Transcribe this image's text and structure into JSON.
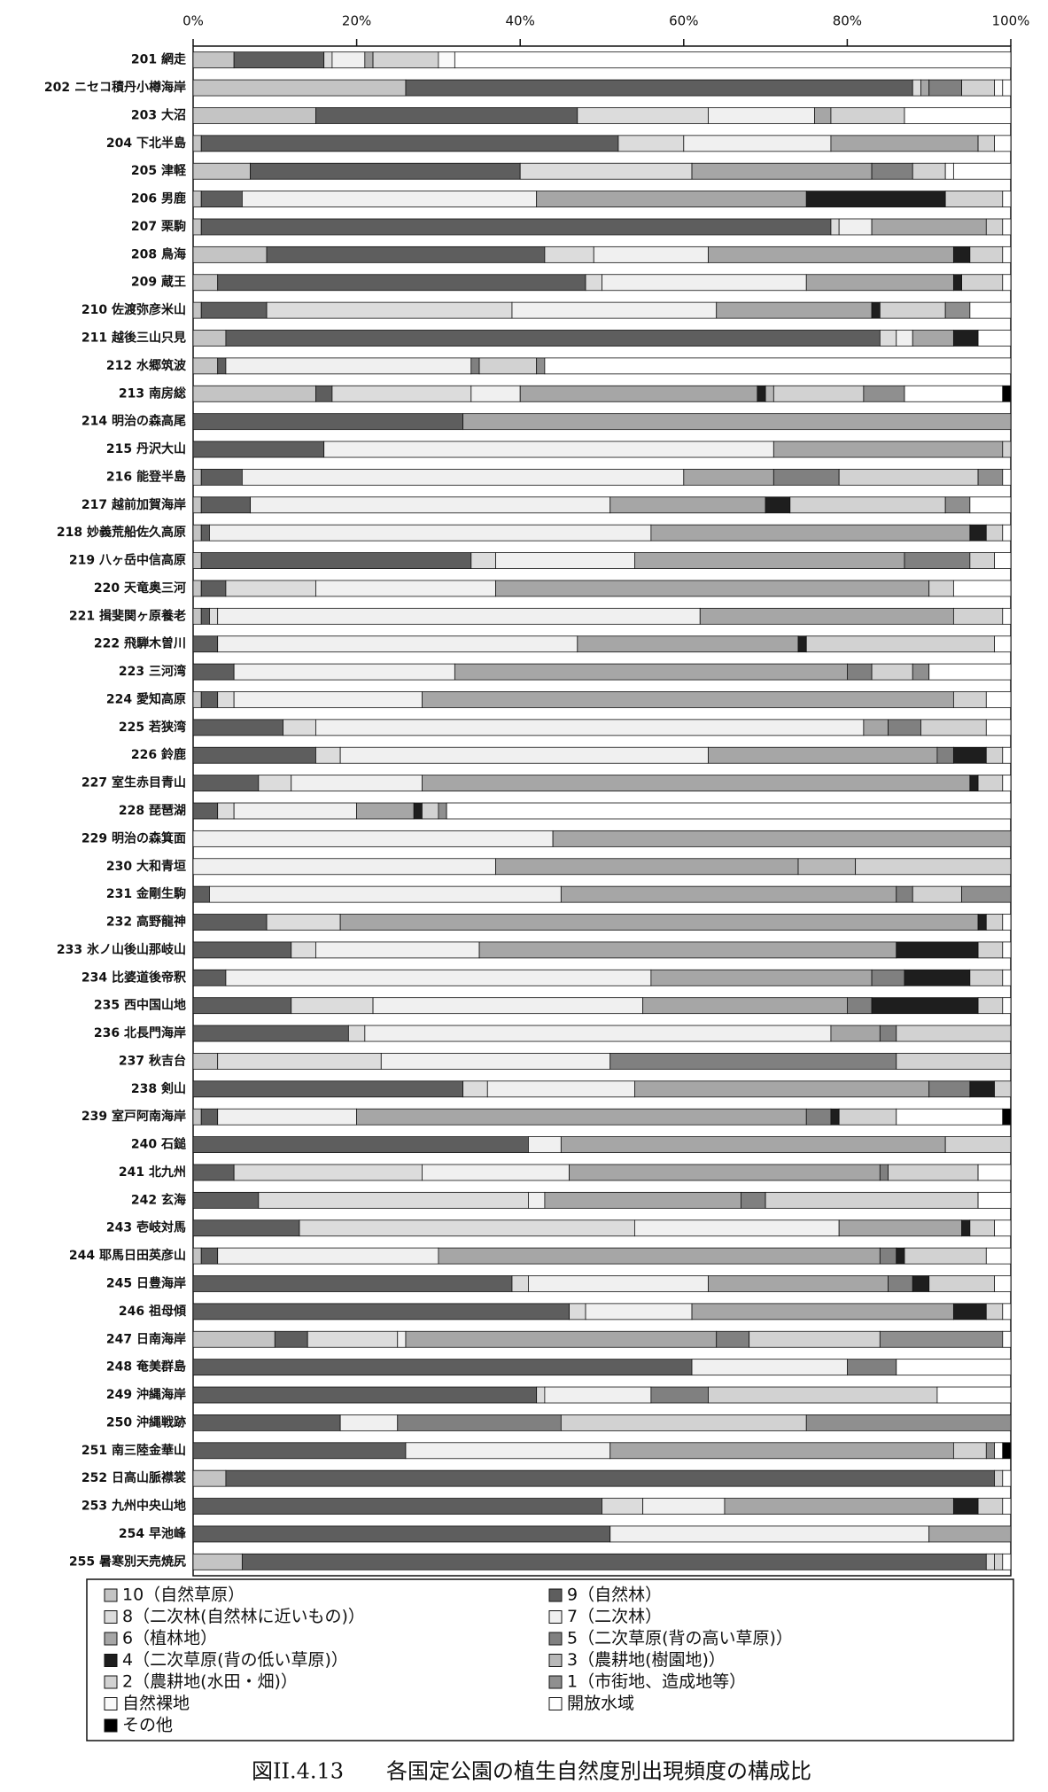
{
  "chart_data": {
    "type": "bar",
    "orientation": "horizontal",
    "stacked": true,
    "title": "図II.4.13　　各国定公園の植生自然度別出現頻度の構成比",
    "categories": [
      "201 網走",
      "202 ニセコ積丹小樽海岸",
      "203 大沼",
      "204 下北半島",
      "205 津軽",
      "206 男鹿",
      "207 栗駒",
      "208 鳥海",
      "209 蔵王",
      "210 佐渡弥彦米山",
      "211 越後三山只見",
      "212 水郷筑波",
      "213 南房総",
      "214 明治の森高尾",
      "215 丹沢大山",
      "216 能登半島",
      "217 越前加賀海岸",
      "218 妙義荒船佐久高原",
      "219 八ヶ岳中信高原",
      "220 天竜奥三河",
      "221 揖斐関ヶ原養老",
      "222 飛騨木曽川",
      "223 三河湾",
      "224 愛知高原",
      "225 若狭湾",
      "226 鈴鹿",
      "227 室生赤目青山",
      "228 琵琶湖",
      "229 明治の森箕面",
      "230 大和青垣",
      "231 金剛生駒",
      "232 高野龍神",
      "233 氷ノ山後山那岐山",
      "234 比婆道後帝釈",
      "235 西中国山地",
      "236 北長門海岸",
      "237 秋吉台",
      "238 剣山",
      "239 室戸阿南海岸",
      "240 石鎚",
      "241 北九州",
      "242 玄海",
      "243 壱岐対馬",
      "244 耶馬日田英彦山",
      "245 日豊海岸",
      "246 祖母傾",
      "247 日南海岸",
      "248 奄美群島",
      "249 沖縄海岸",
      "250 沖縄戦跡",
      "251 南三陸金華山",
      "252 日高山脈襟裳",
      "253 九州中央山地",
      "254 早池峰",
      "255 暑寒別天売焼尻"
    ],
    "xlim": [
      0,
      100
    ],
    "xticks": [
      {
        "value": 0,
        "label": "0%"
      },
      {
        "value": 20,
        "label": "20%"
      },
      {
        "value": 40,
        "label": "40%"
      },
      {
        "value": 60,
        "label": "60%"
      },
      {
        "value": 80,
        "label": "80%"
      },
      {
        "value": 100,
        "label": "100%"
      }
    ],
    "grid": false,
    "series": [
      {
        "name": "10（自然草原）",
        "color": "#c4c4c4",
        "values": [
          5,
          26,
          15,
          1,
          7,
          1,
          1,
          9,
          3,
          1,
          4,
          3,
          15,
          0,
          0,
          1,
          1,
          1,
          1,
          1,
          1,
          0,
          0,
          1,
          0,
          0,
          0,
          0,
          0,
          0,
          0,
          0,
          0,
          0,
          0,
          0,
          3,
          0,
          1,
          0,
          0,
          0,
          0,
          1,
          0,
          0,
          10,
          0,
          0,
          0,
          0,
          4,
          0,
          0,
          6
        ]
      },
      {
        "name": "9（自然林）",
        "color": "#5e5e5e",
        "values": [
          11,
          62,
          32,
          51,
          33,
          5,
          77,
          34,
          45,
          8,
          80,
          1,
          2,
          33,
          16,
          5,
          6,
          1,
          33,
          3,
          1,
          3,
          5,
          2,
          11,
          15,
          8,
          3,
          0,
          0,
          2,
          9,
          12,
          4,
          12,
          19,
          0,
          33,
          2,
          41,
          5,
          8,
          13,
          2,
          39,
          46,
          4,
          61,
          42,
          18,
          26,
          94,
          50,
          51,
          91
        ]
      },
      {
        "name": "8（二次林(自然林に近いもの)）",
        "color": "#dcdcdc",
        "values": [
          1,
          1,
          16,
          8,
          21,
          0,
          1,
          6,
          2,
          30,
          2,
          0,
          17,
          0,
          0,
          0,
          0,
          0,
          3,
          11,
          1,
          0,
          0,
          2,
          4,
          3,
          4,
          2,
          0,
          0,
          0,
          9,
          3,
          0,
          10,
          2,
          20,
          3,
          0,
          0,
          23,
          33,
          41,
          0,
          2,
          2,
          11,
          0,
          1,
          0,
          0,
          0,
          5,
          0,
          1
        ]
      },
      {
        "name": "7（二次林）",
        "color": "#f0f0f0",
        "values": [
          4,
          0,
          13,
          18,
          0,
          36,
          4,
          14,
          25,
          25,
          2,
          30,
          6,
          0,
          55,
          54,
          44,
          54,
          17,
          22,
          59,
          44,
          27,
          23,
          67,
          45,
          16,
          15,
          44,
          37,
          43,
          0,
          20,
          52,
          33,
          57,
          28,
          18,
          17,
          4,
          18,
          2,
          25,
          27,
          22,
          13,
          1,
          19,
          13,
          7,
          25,
          0,
          10,
          39,
          0
        ]
      },
      {
        "name": "6（植林地）",
        "color": "#a6a6a6",
        "values": [
          1,
          1,
          2,
          18,
          22,
          33,
          14,
          30,
          18,
          19,
          5,
          0,
          29,
          67,
          28,
          11,
          19,
          39,
          33,
          53,
          31,
          27,
          48,
          65,
          3,
          28,
          67,
          7,
          56,
          37,
          41,
          78,
          51,
          27,
          25,
          6,
          0,
          36,
          55,
          47,
          38,
          24,
          15,
          54,
          22,
          32,
          38,
          0,
          0,
          0,
          42,
          0,
          28,
          10,
          0
        ]
      },
      {
        "name": "5（二次草原(背の高い草原)）",
        "color": "#808080",
        "values": [
          0,
          4,
          0,
          0,
          5,
          0,
          0,
          0,
          0,
          0,
          0,
          1,
          0,
          0,
          0,
          8,
          0,
          0,
          8,
          0,
          0,
          0,
          3,
          0,
          4,
          2,
          0,
          0,
          0,
          0,
          2,
          0,
          0,
          4,
          3,
          2,
          35,
          5,
          3,
          0,
          1,
          3,
          0,
          2,
          3,
          0,
          4,
          6,
          7,
          20,
          0,
          0,
          0,
          0,
          0
        ]
      },
      {
        "name": "4（二次草原(背の低い草原)）",
        "color": "#1e1e1e",
        "values": [
          0,
          0,
          0,
          0,
          0,
          17,
          0,
          2,
          1,
          1,
          3,
          0,
          1,
          0,
          0,
          0,
          3,
          2,
          0,
          0,
          0,
          1,
          0,
          0,
          0,
          4,
          1,
          1,
          0,
          0,
          0,
          1,
          10,
          8,
          13,
          0,
          0,
          3,
          1,
          0,
          0,
          0,
          1,
          1,
          2,
          4,
          0,
          0,
          0,
          0,
          0,
          0,
          3,
          0,
          0
        ]
      },
      {
        "name": "3（農耕地(樹園地)）",
        "color": "#b8b8b8",
        "values": [
          0,
          0,
          0,
          0,
          0,
          0,
          0,
          0,
          0,
          0,
          0,
          0,
          1,
          0,
          0,
          0,
          0,
          0,
          0,
          0,
          0,
          0,
          0,
          0,
          0,
          0,
          0,
          0,
          0,
          7,
          0,
          0,
          0,
          0,
          0,
          0,
          0,
          0,
          0,
          0,
          0,
          0,
          0,
          0,
          0,
          0,
          0,
          0,
          0,
          0,
          0,
          0,
          0,
          0,
          0
        ]
      },
      {
        "name": "2（農耕地(水田・畑)）",
        "color": "#d2d2d2",
        "values": [
          8,
          4,
          9,
          2,
          4,
          7,
          2,
          4,
          5,
          8,
          0,
          7,
          11,
          0,
          1,
          17,
          19,
          2,
          3,
          3,
          6,
          23,
          5,
          4,
          8,
          2,
          3,
          2,
          0,
          19,
          6,
          2,
          3,
          4,
          3,
          14,
          14,
          2,
          7,
          8,
          11,
          26,
          3,
          10,
          8,
          2,
          16,
          0,
          28,
          30,
          4,
          1,
          3,
          0,
          1
        ]
      },
      {
        "name": "1（市街地、造成地等）",
        "color": "#8f8f8f",
        "values": [
          0,
          0,
          0,
          0,
          0,
          0,
          0,
          0,
          0,
          3,
          0,
          1,
          5,
          0,
          0,
          3,
          3,
          0,
          0,
          0,
          0,
          0,
          2,
          0,
          0,
          0,
          0,
          1,
          0,
          0,
          6,
          0,
          0,
          0,
          0,
          0,
          0,
          0,
          0,
          0,
          0,
          0,
          0,
          0,
          0,
          0,
          15,
          0,
          0,
          25,
          1,
          0,
          0,
          0,
          0
        ]
      },
      {
        "name": "自然裸地",
        "color": "#fafafa",
        "values": [
          2,
          1,
          0,
          0,
          1,
          0,
          0,
          0,
          0,
          0,
          0,
          0,
          0,
          0,
          0,
          0,
          0,
          0,
          0,
          0,
          0,
          0,
          0,
          0,
          0,
          0,
          0,
          0,
          0,
          0,
          0,
          0,
          0,
          0,
          0,
          0,
          0,
          0,
          0,
          0,
          0,
          0,
          0,
          0,
          0,
          0,
          0,
          0,
          0,
          0,
          0,
          0,
          0,
          0,
          0
        ]
      },
      {
        "name": "開放水域",
        "color": "#ffffff",
        "values": [
          68,
          1,
          13,
          2,
          7,
          1,
          1,
          1,
          1,
          5,
          4,
          57,
          12,
          0,
          0,
          1,
          5,
          1,
          2,
          7,
          1,
          2,
          10,
          3,
          3,
          1,
          1,
          69,
          0,
          0,
          0,
          1,
          1,
          1,
          1,
          0,
          0,
          0,
          13,
          0,
          4,
          4,
          2,
          3,
          2,
          1,
          1,
          14,
          9,
          0,
          1,
          1,
          1,
          0,
          1
        ]
      },
      {
        "name": "その他",
        "color": "#000000",
        "values": [
          0,
          0,
          0,
          0,
          0,
          0,
          0,
          0,
          0,
          0,
          0,
          0,
          1,
          0,
          0,
          0,
          0,
          0,
          0,
          0,
          0,
          0,
          0,
          0,
          0,
          0,
          0,
          0,
          0,
          0,
          0,
          0,
          0,
          0,
          0,
          0,
          0,
          0,
          1,
          0,
          0,
          0,
          0,
          0,
          0,
          0,
          0,
          0,
          0,
          0,
          1,
          0,
          0,
          0,
          0
        ]
      }
    ]
  }
}
